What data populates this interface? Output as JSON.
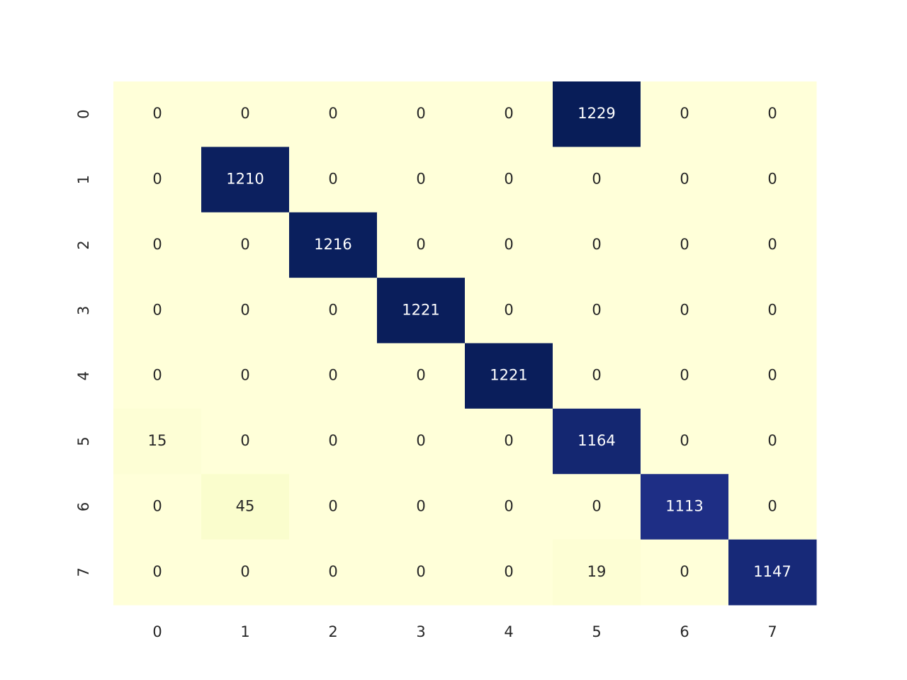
{
  "chart_data": {
    "type": "heatmap",
    "cmap": "YlGnBu",
    "annotate": true,
    "x_categories": [
      "0",
      "1",
      "2",
      "3",
      "4",
      "5",
      "6",
      "7"
    ],
    "y_categories": [
      "0",
      "1",
      "2",
      "3",
      "4",
      "5",
      "6",
      "7"
    ],
    "values": [
      [
        0,
        0,
        0,
        0,
        0,
        1229,
        0,
        0
      ],
      [
        0,
        1210,
        0,
        0,
        0,
        0,
        0,
        0
      ],
      [
        0,
        0,
        1216,
        0,
        0,
        0,
        0,
        0
      ],
      [
        0,
        0,
        0,
        1221,
        0,
        0,
        0,
        0
      ],
      [
        0,
        0,
        0,
        0,
        1221,
        0,
        0,
        0
      ],
      [
        15,
        0,
        0,
        0,
        0,
        1164,
        0,
        0
      ],
      [
        0,
        45,
        0,
        0,
        0,
        0,
        1113,
        0
      ],
      [
        0,
        0,
        0,
        0,
        0,
        19,
        0,
        1147
      ]
    ]
  }
}
